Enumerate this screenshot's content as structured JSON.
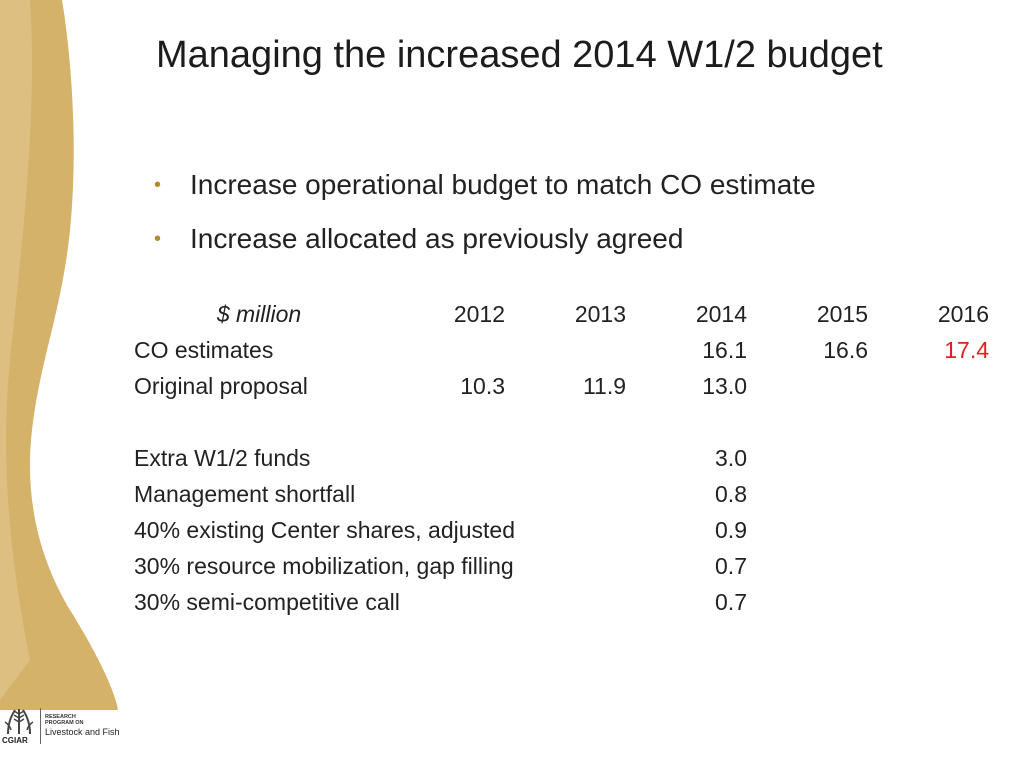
{
  "slide": {
    "title": "Managing the increased 2014 W1/2 budget",
    "bullets": [
      "Increase operational budget to match CO estimate",
      "Increase allocated as previously agreed"
    ]
  },
  "table": {
    "unit_label": "$ million",
    "years": [
      "2012",
      "2013",
      "2014",
      "2015",
      "2016"
    ],
    "rows": [
      {
        "label": "CO estimates",
        "values": [
          "",
          "",
          "16.1",
          "16.6",
          "17.4"
        ]
      },
      {
        "label": "Original proposal",
        "values": [
          "10.3",
          "11.9",
          "13.0",
          "",
          ""
        ]
      },
      {
        "label": "",
        "values": [
          "",
          "",
          "",
          "",
          ""
        ]
      },
      {
        "label": "Extra W1/2 funds",
        "values": [
          "",
          "",
          "3.0",
          "",
          ""
        ]
      },
      {
        "label": "Management shortfall",
        "values": [
          "",
          "",
          "0.8",
          "",
          ""
        ]
      },
      {
        "label": "40% existing Center shares, adjusted",
        "values": [
          "",
          "",
          "0.9",
          "",
          ""
        ]
      },
      {
        "label": "30% resource mobilization, gap filling",
        "values": [
          "",
          "",
          "0.7",
          "",
          ""
        ]
      },
      {
        "label": "30% semi-competitive call",
        "values": [
          "",
          "",
          "0.7",
          "",
          ""
        ]
      }
    ]
  },
  "logo": {
    "org": "CGIAR",
    "program_line1": "RESEARCH",
    "program_line2": "PROGRAM ON",
    "program_name": "Livestock and Fish"
  },
  "colors": {
    "accent_gold": "#d4b26a",
    "bullet": "#b1892f",
    "highlight_red": "#e02020"
  }
}
